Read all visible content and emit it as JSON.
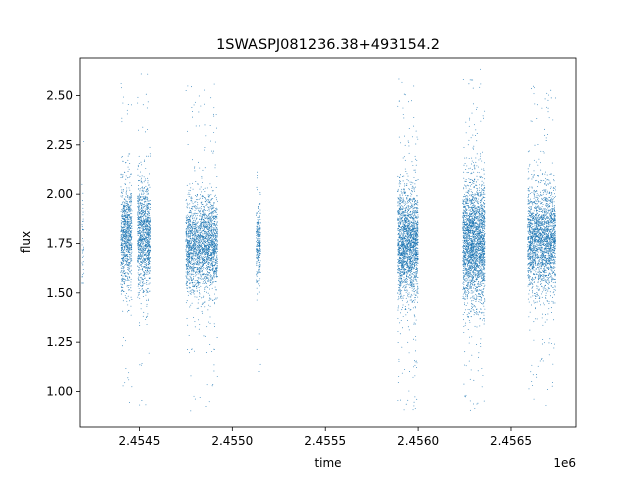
{
  "chart_data": {
    "type": "scatter",
    "title": "1SWASPJ081236.38+493154.2",
    "xlabel": "time",
    "ylabel": "flux",
    "x_offset_label": "1e6",
    "xlim": [
      2.45418,
      2.45685
    ],
    "ylim": [
      0.82,
      2.69
    ],
    "x_ticks": [
      2.4545,
      2.455,
      2.4555,
      2.456,
      2.4565
    ],
    "x_tick_labels": [
      "2.4545",
      "2.4550",
      "2.4555",
      "2.4560",
      "2.4565"
    ],
    "y_ticks": [
      1.0,
      1.25,
      1.5,
      1.75,
      2.0,
      2.25,
      2.5
    ],
    "y_tick_labels": [
      "1.00",
      "1.25",
      "1.50",
      "1.75",
      "2.00",
      "2.25",
      "2.50"
    ],
    "grid": false,
    "marker_color": "#1f77b4",
    "segments": [
      {
        "x_start": 2.45419,
        "x_end": 2.4542,
        "y_center": 1.76,
        "y_spread": 0.2,
        "y_min": 1.55,
        "y_max": 2.47,
        "count": 40
      },
      {
        "x_start": 2.4544,
        "x_end": 2.45446,
        "y_center": 1.78,
        "y_spread": 0.13,
        "y_min": 0.92,
        "y_max": 2.61,
        "count": 900
      },
      {
        "x_start": 2.45449,
        "x_end": 2.45456,
        "y_center": 1.79,
        "y_spread": 0.14,
        "y_min": 0.9,
        "y_max": 2.63,
        "count": 1100
      },
      {
        "x_start": 2.45475,
        "x_end": 2.45492,
        "y_center": 1.74,
        "y_spread": 0.12,
        "y_min": 0.9,
        "y_max": 2.58,
        "count": 2200
      },
      {
        "x_start": 2.45513,
        "x_end": 2.45515,
        "y_center": 1.76,
        "y_spread": 0.1,
        "y_min": 1.1,
        "y_max": 2.15,
        "count": 220
      },
      {
        "x_start": 2.45589,
        "x_end": 2.456,
        "y_center": 1.76,
        "y_spread": 0.14,
        "y_min": 0.9,
        "y_max": 2.6,
        "count": 2000
      },
      {
        "x_start": 2.45624,
        "x_end": 2.45636,
        "y_center": 1.76,
        "y_spread": 0.15,
        "y_min": 0.9,
        "y_max": 2.64,
        "count": 2400
      },
      {
        "x_start": 2.45659,
        "x_end": 2.45674,
        "y_center": 1.77,
        "y_spread": 0.13,
        "y_min": 0.9,
        "y_max": 2.55,
        "count": 2200
      }
    ]
  }
}
